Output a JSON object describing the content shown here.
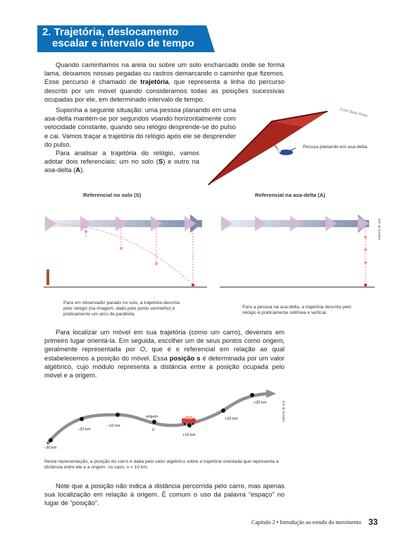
{
  "section": {
    "title_line1": "2. Trajetória, deslocamento",
    "title_line2": "escalar e intervalo de tempo"
  },
  "intro": {
    "p1_a": "Quando caminhamos na areia ou sobre um solo encharcado onde se forma lama, deixamos nossas pegadas ou rastros demarcando o caminho que fizemos. Esse percurso é chamado de ",
    "p1_bold": "trajetória",
    "p1_b": ", que representa a linha do percurso descrito por um móvel quando consideramos todas as posições sucessivas ocupadas por ele, em determinado intervalo de tempo.",
    "p2": "Suponha a seguinte situação: uma pessoa planando em uma asa-delta mantém-se por segundos voando horizontalmente com velocidade constante, quando seu relógio desprende-se do pulso e cai. Vamos traçar a trajetória do relógio após ele se desprender do pulso.",
    "p3_a": "Para analisar a trajetória do relógio, vamos adotar dois referenciais: um no solo (",
    "p3_s": "S",
    "p3_b": ") e outro na asa-delta (",
    "p3_a2": "A",
    "p3_c": ")."
  },
  "photo": {
    "credit": "Corel Stock Photo",
    "caption": "Pessoa planando em asa-delta."
  },
  "figure1": {
    "title_left": "Referencial no solo (S)",
    "title_right": "Referencial na asa-delta (A)",
    "caption_left": "Para um observador parado no solo, a trajetória descrita pelo relógio (na imagem, dado pelo ponto vermelho) é praticamente um arco de parábola.",
    "caption_right": "Para a pessoa na asa-delta, a trajetória descrita pelo relógio é praticamente retilínea e vertical.",
    "credit": "Editoria de arte"
  },
  "body": {
    "p4_a": "Para localizar um móvel em sua trajetória (como um carro), devemos em primeiro lugar orientá-la. Em seguida, escolher um de seus pontos como origem, geralmente representada por ",
    "p4_o": "O",
    "p4_b": ", que é o referencial em relação ao qual estabelecemos a posição do móvel. Essa ",
    "p4_bold": "posição s",
    "p4_c": " é determinada por um valor algébrico, cujo módulo representa a distância entre a posição ocupada pelo móvel e a origem."
  },
  "figure2": {
    "origin_label": "origem",
    "zero": "0",
    "positions": [
      "−30 km",
      "−20 km",
      "−10 km",
      "+10 km",
      "+20 km",
      "+30 km"
    ],
    "credit": "Editoria de arte",
    "caption": "Nesta representação, a posição do carro é dada pelo valor algébrico sobre a trajetória orientada que representa a distância entre ele e a origem, no caso, s = 10 km."
  },
  "closing": {
    "p5": "Note que a posição não indica a distância percorrida pelo carro, mas apenas sua localização em relação à origem. É comum o uso da palavra “espaço” no lugar de “posição”."
  },
  "footer": {
    "chapter": "Capítulo 2 • Introdução ao estudo do movimento",
    "page": "33"
  },
  "colors": {
    "banner": "#0d6fb8",
    "dot_red": "#c8322c",
    "glider_red": "#a8261e"
  }
}
